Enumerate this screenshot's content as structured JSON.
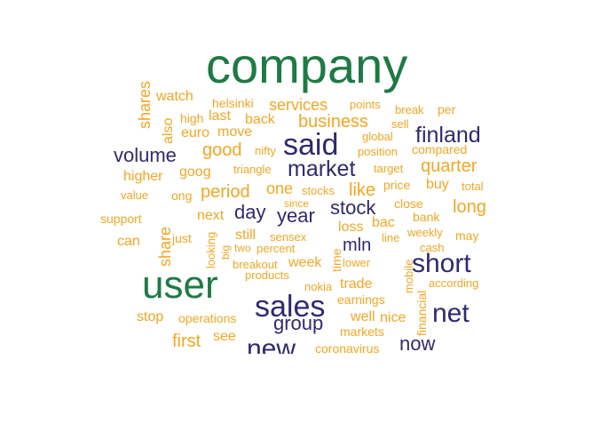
{
  "palette": {
    "high": "#1e7a44",
    "mid": "#2e2a6e",
    "low": "#f5a623"
  },
  "words": {
    "company": "company",
    "user": "user",
    "said": "said",
    "sales": "sales",
    "new": "new",
    "short": "short",
    "net": "net",
    "finland": "finland",
    "market": "market",
    "volume": "volume",
    "stock": "stock",
    "year": "year",
    "day": "day",
    "group": "group",
    "now": "now",
    "quarter": "quarter",
    "long": "long",
    "business": "business",
    "shares": "shares",
    "share": "share",
    "also": "also",
    "watch": "watch",
    "helsinki": "helsinki",
    "services": "services",
    "points": "points",
    "per": "per",
    "break": "break",
    "high": "high",
    "last": "last",
    "back": "back",
    "sell": "sell",
    "euro": "euro",
    "move": "move",
    "global": "global",
    "nifty": "nifty",
    "position": "position",
    "compared": "compared",
    "good": "good",
    "higher": "higher",
    "goog": "goog",
    "triangle": "triangle",
    "target": "target",
    "value": "value",
    "ong": "ong",
    "period": "period",
    "one": "one",
    "stocks": "stocks",
    "like": "like",
    "price": "price",
    "buy": "buy",
    "total": "total",
    "since": "since",
    "close": "close",
    "support": "support",
    "next": "next",
    "bank": "bank",
    "bac": "bac",
    "can": "can",
    "just": "just",
    "looking": "looking",
    "big": "big",
    "still": "still",
    "sensex": "sensex",
    "loss": "loss",
    "weekly": "weekly",
    "may": "may",
    "line": "line",
    "two": "two",
    "percent": "percent",
    "mln": "mln",
    "cash": "cash",
    "time": "time",
    "breakout": "breakout",
    "week": "week",
    "lower": "lower",
    "products": "products",
    "financial": "financial",
    "mobile": "mobile",
    "according": "according",
    "nokia": "nokia",
    "trade": "trade",
    "earnings": "earnings",
    "stop": "stop",
    "operations": "operations",
    "well": "well",
    "nice": "nice",
    "markets": "markets",
    "first": "first",
    "see": "see",
    "coronavirus": "coronavirus"
  }
}
